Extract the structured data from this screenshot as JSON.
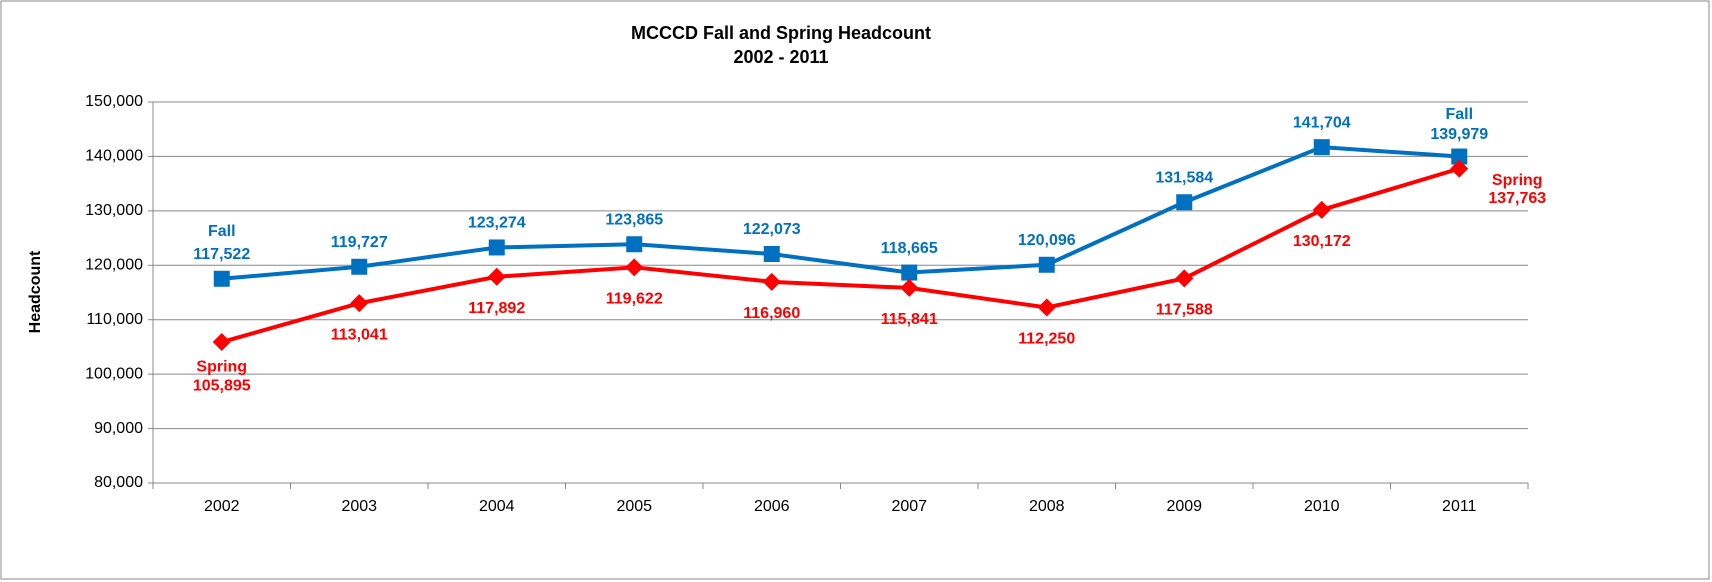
{
  "chart_data": {
    "type": "line",
    "title": "MCCCD Fall and Spring Headcount",
    "subtitle": "2002 - 2011",
    "y_label": "Headcount",
    "categories": [
      "2002",
      "2003",
      "2004",
      "2005",
      "2006",
      "2007",
      "2008",
      "2009",
      "2010",
      "2011"
    ],
    "series": [
      {
        "name": "Fall",
        "color": "#0070c0",
        "marker": "square",
        "values": [
          117522,
          119727,
          123274,
          123865,
          122073,
          118665,
          120096,
          131584,
          141704,
          139979
        ],
        "value_labels": [
          "117,522",
          "119,727",
          "123,274",
          "123,865",
          "122,073",
          "118,665",
          "120,096",
          "131,584",
          "141,704",
          "139,979"
        ]
      },
      {
        "name": "Spring",
        "color": "#ff0000",
        "marker": "diamond",
        "values": [
          105895,
          113041,
          117892,
          119622,
          116960,
          115841,
          112250,
          117588,
          130172,
          137763
        ],
        "value_labels": [
          "105,895",
          "113,041",
          "117,892",
          "119,622",
          "116,960",
          "115,841",
          "112,250",
          "117,588",
          "130,172",
          "137,763"
        ]
      }
    ],
    "ylim": [
      80000,
      150000
    ],
    "yticks": [
      {
        "value": 80000,
        "label": "80,000"
      },
      {
        "value": 90000,
        "label": "90,000"
      },
      {
        "value": 100000,
        "label": "100,000"
      },
      {
        "value": 110000,
        "label": "110,000"
      },
      {
        "value": 120000,
        "label": "120,000"
      },
      {
        "value": 130000,
        "label": "130,000"
      },
      {
        "value": 140000,
        "label": "140,000"
      },
      {
        "value": 150000,
        "label": "150,000"
      }
    ],
    "grid": true
  }
}
